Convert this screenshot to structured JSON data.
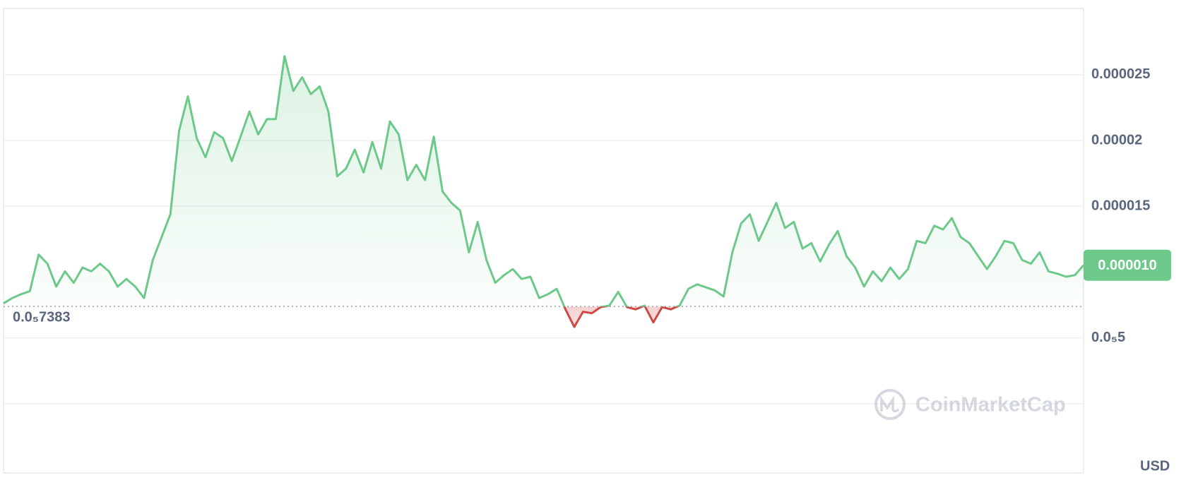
{
  "chart_data": {
    "type": "line",
    "values": [
      7.63e-06,
      8.03e-06,
      8.32e-06,
      8.55e-06,
      1.133e-05,
      1.064e-05,
      8.9e-06,
      1.006e-05,
      9.19e-06,
      1.035e-05,
      1.006e-05,
      1.064e-05,
      1.006e-05,
      8.9e-06,
      9.48e-06,
      8.9e-06,
      8.03e-06,
      1.092e-05,
      1.266e-05,
      1.439e-05,
      2.075e-05,
      2.335e-05,
      2.017e-05,
      1.873e-05,
      2.063e-05,
      2.017e-05,
      1.844e-05,
      2.029e-05,
      2.22e-05,
      2.046e-05,
      2.162e-05,
      2.162e-05,
      2.641e-05,
      2.376e-05,
      2.48e-05,
      2.352e-05,
      2.41e-05,
      2.22e-05,
      1.728e-05,
      1.786e-05,
      1.931e-05,
      1.757e-05,
      1.988e-05,
      1.786e-05,
      2.144e-05,
      2.046e-05,
      1.699e-05,
      1.815e-05,
      1.699e-05,
      2.029e-05,
      1.613e-05,
      1.526e-05,
      1.468e-05,
      1.15e-05,
      1.381e-05,
      1.092e-05,
      9.19e-06,
      9.77e-06,
      1.023e-05,
      9.48e-06,
      9.65e-06,
      8.03e-06,
      8.32e-06,
      8.73e-06,
      7.17e-06,
      5.84e-06,
      6.99e-06,
      6.88e-06,
      7.34e-06,
      7.46e-06,
      8.5e-06,
      7.34e-06,
      7.17e-06,
      7.46e-06,
      6.18e-06,
      7.34e-06,
      7.17e-06,
      7.46e-06,
      8.73e-06,
      9.07e-06,
      8.84e-06,
      8.61e-06,
      8.15e-06,
      1.15e-05,
      1.37e-05,
      1.439e-05,
      1.237e-05,
      1.381e-05,
      1.526e-05,
      1.335e-05,
      1.381e-05,
      1.179e-05,
      1.22e-05,
      1.081e-05,
      1.208e-05,
      1.312e-05,
      1.121e-05,
      1.035e-05,
      8.9e-06,
      1.006e-05,
      9.31e-06,
      1.035e-05,
      9.48e-06,
      1.023e-05,
      1.237e-05,
      1.22e-05,
      1.353e-05,
      1.324e-05,
      1.41e-05,
      1.266e-05,
      1.22e-05,
      1.121e-05,
      1.023e-05,
      1.121e-05,
      1.237e-05,
      1.22e-05,
      1.092e-05,
      1.064e-05,
      1.15e-05,
      1.006e-05,
      9.88e-06,
      9.65e-06,
      9.77e-06,
      1.052e-05
    ],
    "color": "#6dc98a",
    "down_color": "#cf4a45",
    "baseline": 7.383e-06,
    "baseline_label": "0.0₅7383",
    "current_price_label": "0.000010",
    "ylim": [
      0,
      3e-05
    ],
    "yticks": [
      {
        "value": 5e-06,
        "label": "0.0₅5"
      },
      1.5e-05,
      2e-05,
      2.5e-05
    ],
    "grid": true,
    "watermark": "CoinMarketCap",
    "currency": "USD"
  }
}
